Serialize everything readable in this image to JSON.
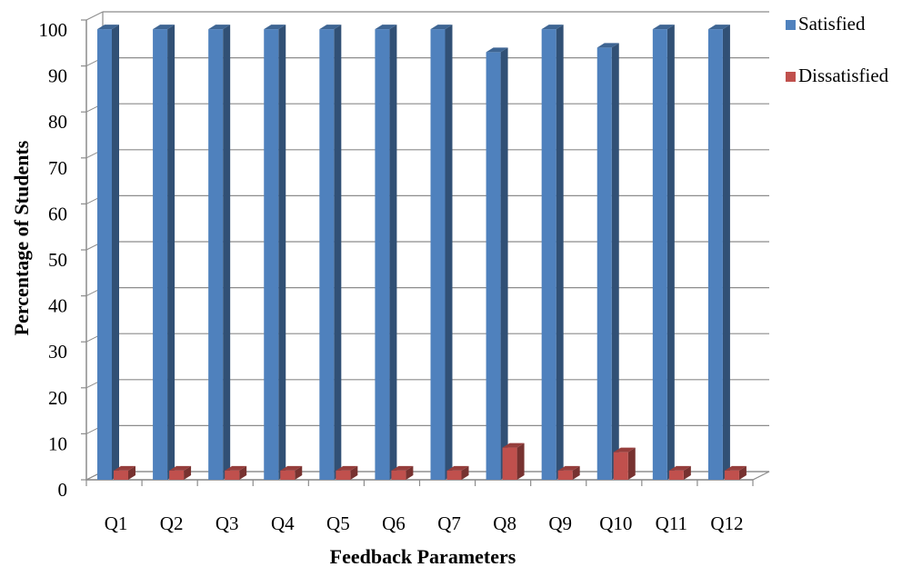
{
  "chart_data": {
    "type": "bar",
    "title": "",
    "xlabel": "Feedback Parameters",
    "ylabel": "Percentage of Students",
    "categories": [
      "Q1",
      "Q2",
      "Q3",
      "Q4",
      "Q5",
      "Q6",
      "Q7",
      "Q8",
      "Q9",
      "Q10",
      "Q11",
      "Q12"
    ],
    "series": [
      {
        "name": "Satisfied",
        "color": "#4F81BD",
        "values": [
          98,
          98,
          98,
          98,
          98,
          98,
          98,
          93,
          98,
          94,
          98,
          98
        ]
      },
      {
        "name": "Dissatisfied",
        "color": "#C0504D",
        "values": [
          2,
          2,
          2,
          2,
          2,
          2,
          2,
          7,
          2,
          6,
          2,
          2
        ]
      }
    ],
    "ylim": [
      0,
      100
    ],
    "yticks": [
      0,
      10,
      20,
      30,
      40,
      50,
      60,
      70,
      80,
      90,
      100
    ],
    "grid": true,
    "legend": "top-right",
    "style": "3d-clustered-column"
  }
}
